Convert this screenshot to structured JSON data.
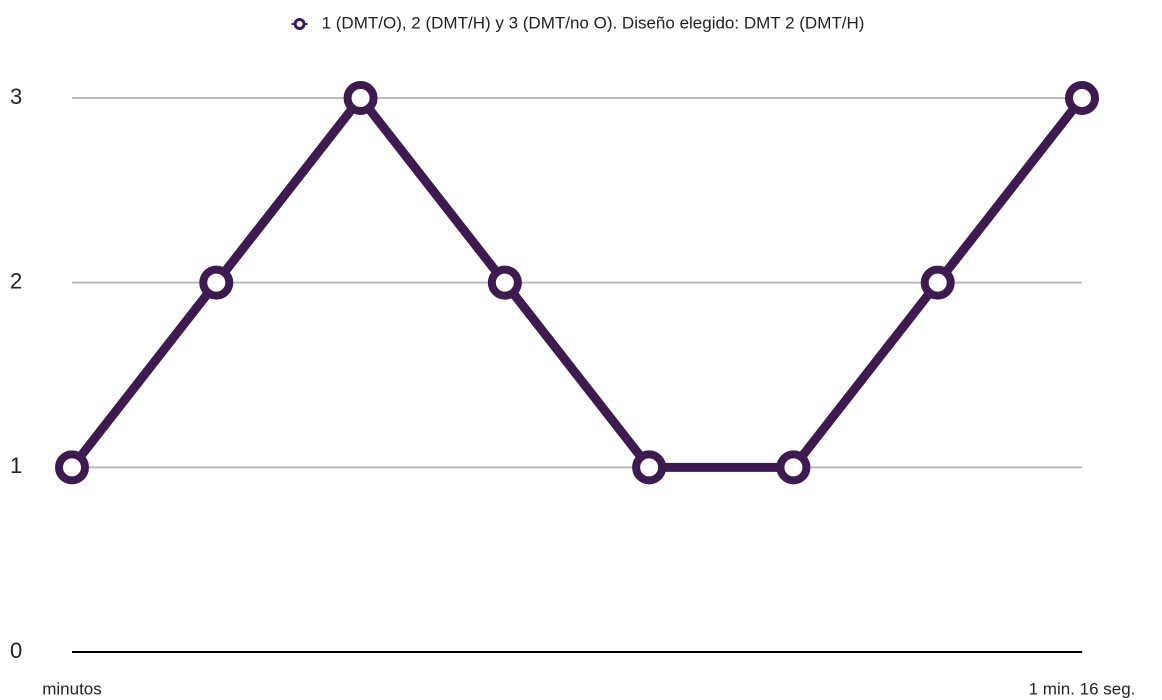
{
  "chart_data": {
    "type": "line",
    "categories": [
      "minutos",
      null,
      null,
      null,
      null,
      null,
      null,
      "1 min. 16 seg."
    ],
    "series": [
      {
        "name": "1 (DMT/O), 2 (DMT/H) y 3 (DMT/no O). Diseño elegido: DMT 2 (DMT/H)",
        "color": "#3d1a4f",
        "values": [
          1,
          2,
          3,
          2,
          1,
          1,
          2,
          3
        ]
      }
    ],
    "ylim": [
      0,
      3
    ],
    "yticks": [
      0,
      1,
      2,
      3
    ],
    "grid": true,
    "legend": "top"
  }
}
